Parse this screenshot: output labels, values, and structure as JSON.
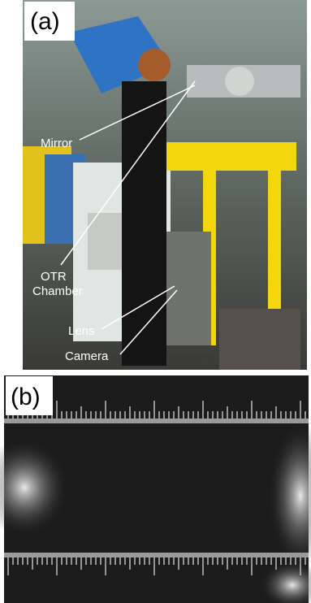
{
  "panel_a": {
    "label": "(a)",
    "annotations": [
      [
        "Mirror"
      ],
      [
        "OTR",
        "Chamber"
      ],
      [
        "Lens"
      ],
      [
        "Camera"
      ]
    ]
  },
  "panel_b": {
    "label": "(b)"
  }
}
